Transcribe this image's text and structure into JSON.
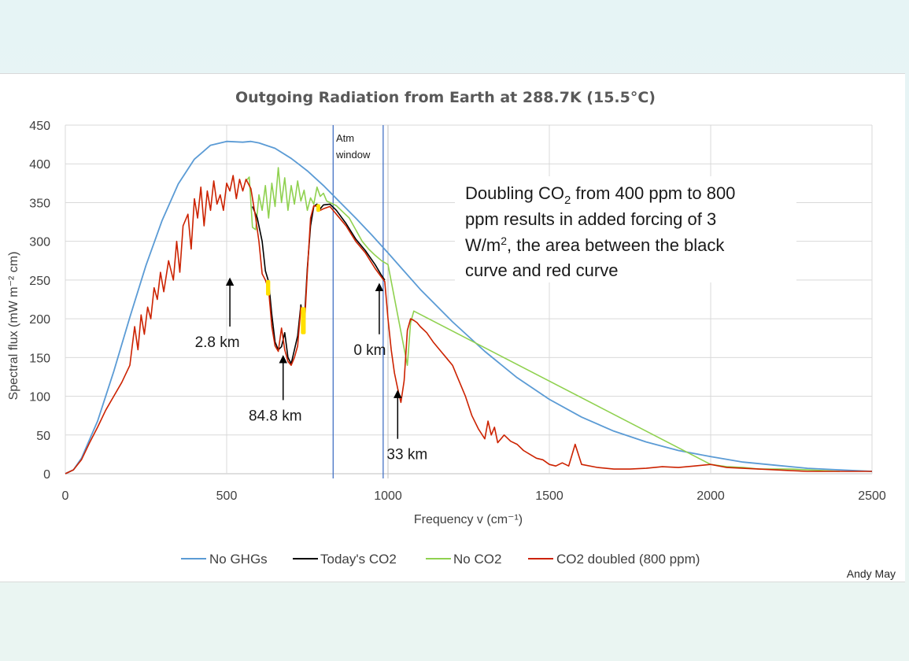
{
  "chart_data": {
    "type": "line",
    "title": "Outgoing Radiation from Earth at 288.7K (15.5°C)",
    "xlabel": "Frequency v (cm⁻¹)",
    "ylabel": "Spectral flux (mW m⁻² cm)",
    "xlim": [
      0,
      2500
    ],
    "ylim": [
      0,
      450
    ],
    "x_ticks": [
      0,
      500,
      1000,
      1500,
      2000,
      2500
    ],
    "y_ticks": [
      0,
      50,
      100,
      150,
      200,
      250,
      300,
      350,
      400,
      450
    ],
    "grid": true,
    "legend_position": "bottom",
    "colors": {
      "no_ghg": "#5b9bd5",
      "today": "#000000",
      "no_co2": "#8fd14f",
      "doubled": "#cc2200",
      "window": "#4472c4",
      "highlight": "#ffe000"
    },
    "series": [
      {
        "name": "No GHGs",
        "key": "no_ghg",
        "x": [
          0,
          25,
          50,
          100,
          150,
          200,
          250,
          300,
          350,
          400,
          450,
          500,
          550,
          575,
          600,
          650,
          700,
          750,
          800,
          850,
          900,
          950,
          1000,
          1100,
          1200,
          1300,
          1400,
          1500,
          1600,
          1700,
          1800,
          1900,
          2000,
          2100,
          2200,
          2300,
          2400,
          2500
        ],
        "y": [
          0,
          5,
          20,
          68,
          132,
          202,
          269,
          327,
          374,
          406,
          424,
          429,
          428,
          429,
          427,
          420,
          407,
          391,
          372,
          351,
          330,
          308,
          285,
          238,
          196,
          158,
          124,
          96,
          73,
          55,
          41,
          30,
          22,
          15,
          11,
          7,
          5,
          3
        ]
      },
      {
        "name": "Today's CO2",
        "key": "today",
        "x": [
          580,
          595,
          610,
          620,
          630,
          640,
          650,
          660,
          670,
          680,
          690,
          700,
          710,
          720,
          730,
          740,
          750,
          760,
          770,
          780,
          790,
          800,
          820,
          840,
          870,
          900,
          930,
          960,
          980,
          990
        ],
        "y": [
          345,
          330,
          300,
          262,
          248,
          205,
          170,
          160,
          164,
          182,
          150,
          142,
          160,
          178,
          218,
          192,
          265,
          320,
          345,
          348,
          342,
          347,
          348,
          340,
          323,
          303,
          288,
          270,
          256,
          250
        ]
      },
      {
        "name": "No CO2",
        "key": "no_co2",
        "x": [
          560,
          570,
          580,
          590,
          600,
          610,
          620,
          630,
          640,
          650,
          660,
          670,
          680,
          690,
          700,
          710,
          720,
          730,
          740,
          750,
          760,
          770,
          780,
          790,
          800,
          810,
          820,
          840,
          860,
          880,
          900,
          920,
          940,
          960,
          980,
          1000,
          1060,
          1070,
          1080,
          2000,
          2050,
          2100,
          2150,
          2250,
          2300,
          2350,
          2400
        ],
        "y": [
          378,
          383,
          318,
          315,
          360,
          340,
          372,
          330,
          375,
          345,
          395,
          350,
          382,
          340,
          372,
          348,
          378,
          352,
          366,
          340,
          356,
          348,
          370,
          358,
          362,
          352,
          350,
          346,
          338,
          330,
          315,
          300,
          290,
          282,
          275,
          270,
          140,
          195,
          210,
          12,
          9,
          8,
          6,
          6,
          5,
          4,
          3
        ]
      },
      {
        "name": "CO2 doubled (800 ppm)",
        "key": "doubled",
        "x": [
          0,
          25,
          50,
          75,
          100,
          125,
          150,
          175,
          200,
          215,
          225,
          235,
          245,
          255,
          265,
          275,
          285,
          295,
          305,
          320,
          335,
          345,
          355,
          365,
          380,
          390,
          400,
          410,
          420,
          430,
          440,
          450,
          460,
          470,
          480,
          490,
          500,
          510,
          520,
          530,
          540,
          550,
          560,
          575,
          590,
          600,
          610,
          620,
          630,
          640,
          650,
          660,
          670,
          680,
          690,
          700,
          710,
          720,
          730,
          740,
          750,
          760,
          770,
          780,
          790,
          800,
          820,
          840,
          870,
          900,
          930,
          960,
          990,
          1000,
          1010,
          1020,
          1030,
          1040,
          1050,
          1060,
          1070,
          1080,
          1090,
          1100,
          1120,
          1140,
          1160,
          1180,
          1200,
          1220,
          1240,
          1260,
          1280,
          1300,
          1310,
          1320,
          1330,
          1340,
          1360,
          1380,
          1400,
          1420,
          1440,
          1460,
          1480,
          1500,
          1520,
          1540,
          1560,
          1580,
          1600,
          1650,
          1700,
          1750,
          1800,
          1850,
          1900,
          1950,
          2000,
          2050,
          2100,
          2150,
          2200,
          2250,
          2300,
          2350,
          2400,
          2450,
          2500
        ],
        "y": [
          0,
          5,
          18,
          40,
          60,
          82,
          100,
          118,
          140,
          190,
          160,
          205,
          180,
          215,
          200,
          240,
          225,
          260,
          235,
          275,
          250,
          300,
          260,
          320,
          335,
          290,
          355,
          330,
          370,
          320,
          365,
          340,
          378,
          348,
          360,
          340,
          375,
          365,
          385,
          355,
          380,
          365,
          380,
          368,
          330,
          300,
          258,
          250,
          238,
          190,
          165,
          158,
          188,
          160,
          145,
          140,
          150,
          165,
          215,
          182,
          260,
          330,
          346,
          345,
          340,
          342,
          345,
          335,
          320,
          300,
          285,
          265,
          248,
          200,
          160,
          130,
          110,
          92,
          120,
          185,
          200,
          198,
          195,
          190,
          182,
          170,
          160,
          150,
          140,
          120,
          100,
          75,
          58,
          45,
          68,
          50,
          60,
          40,
          50,
          42,
          38,
          30,
          25,
          20,
          18,
          12,
          10,
          14,
          10,
          38,
          12,
          8,
          6,
          6,
          7,
          9,
          8,
          10,
          12,
          8,
          7,
          6,
          5,
          4,
          3,
          3,
          3,
          3,
          3
        ]
      }
    ],
    "highlights": [
      {
        "x": [
          622,
          635
        ],
        "y": [
          230,
          250
        ]
      },
      {
        "x": [
          730,
          745
        ],
        "y": [
          180,
          215
        ]
      },
      {
        "x": [
          778,
          790
        ],
        "y": [
          338,
          348
        ]
      }
    ],
    "vertical_lines": [
      {
        "x": 830
      },
      {
        "x": 985
      },
      {
        "x": 1000
      }
    ],
    "annotations": {
      "window_line1": "Atm",
      "window_line2": "window",
      "doubling_line1a": "Doubling CO",
      "doubling_line1b": "2",
      "doubling_line1c": " from 400 ppm to 800",
      "doubling_line2": "ppm results in added forcing of  3",
      "doubling_line3a": "W/m",
      "doubling_line3b": "2",
      "doubling_line3c": ", the area between the black",
      "doubling_line4": "curve and red curve",
      "arrows": [
        {
          "label": "2.8 km",
          "x": 510,
          "y_tip": 250,
          "y_tail": 190
        },
        {
          "label": "84.8 km",
          "x": 675,
          "y_tip": 150,
          "y_tail": 95
        },
        {
          "label": "0 km",
          "x": 973,
          "y_tip": 243,
          "y_tail": 180
        },
        {
          "label": "33 km",
          "x": 1030,
          "y_tip": 105,
          "y_tail": 45
        }
      ]
    },
    "credit": "Andy May"
  }
}
